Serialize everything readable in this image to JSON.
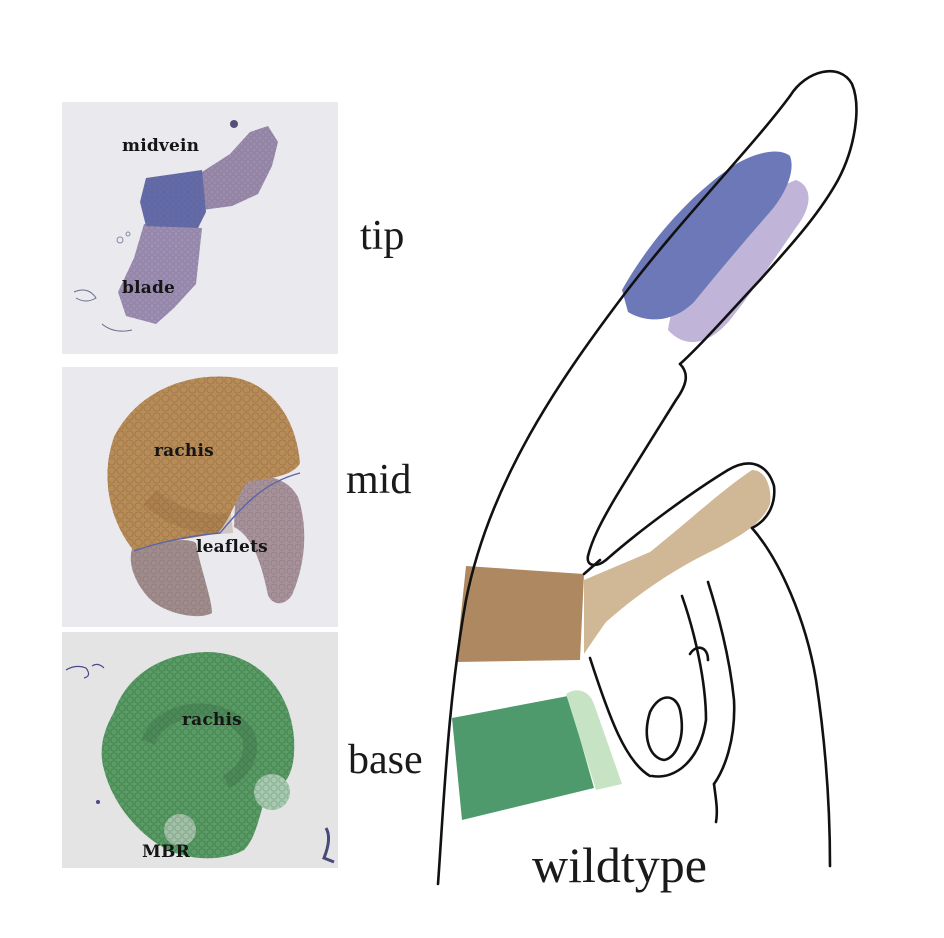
{
  "panels": {
    "tip": {
      "label_midvein": "midvein",
      "label_blade": "blade"
    },
    "mid": {
      "label_rachis": "rachis",
      "label_leaflets": "leaflets"
    },
    "base": {
      "label_rachis": "rachis",
      "label_mbr": "MBR"
    }
  },
  "rows": {
    "tip": "tip",
    "mid": "mid",
    "base": "base"
  },
  "caption": "wildtype",
  "colors": {
    "midvein": "#6c78b8",
    "blade": "#c0b4d8",
    "rachis_mid": "#ae8860",
    "leaflets": "#d0b896",
    "rachis_base": "#4e9a6c",
    "mbr": "#c6e4c4",
    "panel_background": "#e8e8ec",
    "outline": "#111111"
  }
}
